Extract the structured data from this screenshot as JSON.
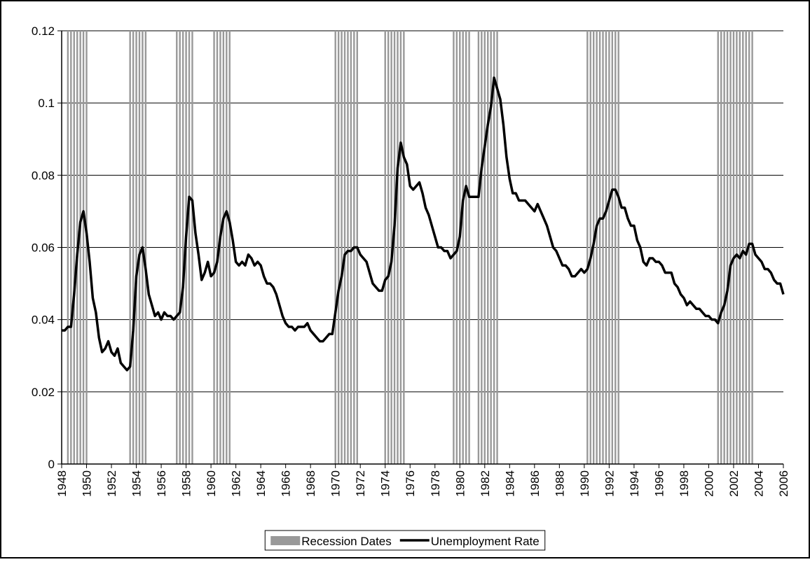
{
  "chart_data": {
    "type": "line",
    "xlim": [
      1948,
      2006
    ],
    "xticks": [
      1948,
      1950,
      1952,
      1954,
      1956,
      1958,
      1960,
      1962,
      1964,
      1966,
      1968,
      1970,
      1972,
      1974,
      1976,
      1978,
      1980,
      1982,
      1984,
      1986,
      1988,
      1990,
      1992,
      1994,
      1996,
      1998,
      2000,
      2002,
      2004,
      2006
    ],
    "ylim": [
      0,
      0.12
    ],
    "yticks": [
      0,
      0.02,
      0.04,
      0.06,
      0.08,
      0.1,
      0.12
    ],
    "grid": true,
    "legend": "bottom",
    "series": [
      {
        "name": "Recession Dates",
        "type": "bar",
        "color": "#999999",
        "x": [
          1948.5,
          1948.75,
          1949,
          1949.25,
          1949.5,
          1949.75,
          1950,
          1953.5,
          1953.75,
          1954,
          1954.25,
          1954.5,
          1954.75,
          1957.25,
          1957.5,
          1957.75,
          1958,
          1958.25,
          1958.5,
          1960.25,
          1960.5,
          1960.75,
          1961,
          1961.25,
          1961.5,
          1970,
          1970.25,
          1970.5,
          1970.75,
          1971,
          1971.25,
          1971.5,
          1971.75,
          1974,
          1974.25,
          1974.5,
          1974.75,
          1975,
          1975.25,
          1975.5,
          1979.5,
          1979.75,
          1980,
          1980.25,
          1980.5,
          1980.75,
          1981.5,
          1981.75,
          1982,
          1982.25,
          1982.5,
          1982.75,
          1983,
          1990.25,
          1990.5,
          1990.75,
          1991,
          1991.25,
          1991.5,
          1991.75,
          1992,
          1992.25,
          1992.5,
          1992.75,
          2000.75,
          2001,
          2001.25,
          2001.5,
          2001.75,
          2002,
          2002.25,
          2002.5,
          2002.75,
          2003,
          2003.25,
          2003.5
        ],
        "values": [
          0.12,
          0.12,
          0.12,
          0.12,
          0.12,
          0.12,
          0.12,
          0.12,
          0.12,
          0.12,
          0.12,
          0.12,
          0.12,
          0.12,
          0.12,
          0.12,
          0.12,
          0.12,
          0.12,
          0.12,
          0.12,
          0.12,
          0.12,
          0.12,
          0.12,
          0.12,
          0.12,
          0.12,
          0.12,
          0.12,
          0.12,
          0.12,
          0.12,
          0.12,
          0.12,
          0.12,
          0.12,
          0.12,
          0.12,
          0.12,
          0.12,
          0.12,
          0.12,
          0.12,
          0.12,
          0.12,
          0.12,
          0.12,
          0.12,
          0.12,
          0.12,
          0.12,
          0.12,
          0.12,
          0.12,
          0.12,
          0.12,
          0.12,
          0.12,
          0.12,
          0.12,
          0.12,
          0.12,
          0.12,
          0.12,
          0.12,
          0.12,
          0.12,
          0.12,
          0.12,
          0.12,
          0.12,
          0.12,
          0.12,
          0.12,
          0.12
        ]
      },
      {
        "name": "Unemployment Rate",
        "color": "#000000",
        "x": [
          1948,
          1948.25,
          1948.5,
          1948.75,
          1949,
          1949.25,
          1949.5,
          1949.75,
          1950,
          1950.25,
          1950.5,
          1950.75,
          1951,
          1951.25,
          1951.5,
          1951.75,
          1952,
          1952.25,
          1952.5,
          1952.75,
          1953,
          1953.25,
          1953.5,
          1953.75,
          1954,
          1954.25,
          1954.5,
          1954.75,
          1955,
          1955.25,
          1955.5,
          1955.75,
          1956,
          1956.25,
          1956.5,
          1956.75,
          1957,
          1957.25,
          1957.5,
          1957.75,
          1958,
          1958.25,
          1958.5,
          1958.75,
          1959,
          1959.25,
          1959.5,
          1959.75,
          1960,
          1960.25,
          1960.5,
          1960.75,
          1961,
          1961.25,
          1961.5,
          1961.75,
          1962,
          1962.25,
          1962.5,
          1962.75,
          1963,
          1963.25,
          1963.5,
          1963.75,
          1964,
          1964.25,
          1964.5,
          1964.75,
          1965,
          1965.25,
          1965.5,
          1965.75,
          1966,
          1966.25,
          1966.5,
          1966.75,
          1967,
          1967.25,
          1967.5,
          1967.75,
          1968,
          1968.25,
          1968.5,
          1968.75,
          1969,
          1969.25,
          1969.5,
          1969.75,
          1970,
          1970.25,
          1970.5,
          1970.75,
          1971,
          1971.25,
          1971.5,
          1971.75,
          1972,
          1972.25,
          1972.5,
          1972.75,
          1973,
          1973.25,
          1973.5,
          1973.75,
          1974,
          1974.25,
          1974.5,
          1974.75,
          1975,
          1975.25,
          1975.5,
          1975.75,
          1976,
          1976.25,
          1976.5,
          1976.75,
          1977,
          1977.25,
          1977.5,
          1977.75,
          1978,
          1978.25,
          1978.5,
          1978.75,
          1979,
          1979.25,
          1979.5,
          1979.75,
          1980,
          1980.25,
          1980.5,
          1980.75,
          1981,
          1981.25,
          1981.5,
          1981.75,
          1982,
          1982.25,
          1982.5,
          1982.75,
          1983,
          1983.25,
          1983.5,
          1983.75,
          1984,
          1984.25,
          1984.5,
          1984.75,
          1985,
          1985.25,
          1985.5,
          1985.75,
          1986,
          1986.25,
          1986.5,
          1986.75,
          1987,
          1987.25,
          1987.5,
          1987.75,
          1988,
          1988.25,
          1988.5,
          1988.75,
          1989,
          1989.25,
          1989.5,
          1989.75,
          1990,
          1990.25,
          1990.5,
          1990.75,
          1991,
          1991.25,
          1991.5,
          1991.75,
          1992,
          1992.25,
          1992.5,
          1992.75,
          1993,
          1993.25,
          1993.5,
          1993.75,
          1994,
          1994.25,
          1994.5,
          1994.75,
          1995,
          1995.25,
          1995.5,
          1995.75,
          1996,
          1996.25,
          1996.5,
          1996.75,
          1997,
          1997.25,
          1997.5,
          1997.75,
          1998,
          1998.25,
          1998.5,
          1998.75,
          1999,
          1999.25,
          1999.5,
          1999.75,
          2000,
          2000.25,
          2000.5,
          2000.75,
          2001,
          2001.25,
          2001.5,
          2001.75,
          2002,
          2002.25,
          2002.5,
          2002.75,
          2003,
          2003.25,
          2003.5,
          2003.75,
          2004,
          2004.25,
          2004.5,
          2004.75,
          2005,
          2005.25,
          2005.5,
          2005.75,
          2006
        ],
        "values": [
          0.037,
          0.037,
          0.038,
          0.038,
          0.047,
          0.058,
          0.067,
          0.07,
          0.064,
          0.056,
          0.046,
          0.042,
          0.035,
          0.031,
          0.032,
          0.034,
          0.031,
          0.03,
          0.032,
          0.028,
          0.027,
          0.026,
          0.027,
          0.037,
          0.052,
          0.058,
          0.06,
          0.054,
          0.047,
          0.044,
          0.041,
          0.042,
          0.04,
          0.042,
          0.041,
          0.041,
          0.04,
          0.041,
          0.042,
          0.049,
          0.063,
          0.074,
          0.073,
          0.064,
          0.058,
          0.051,
          0.053,
          0.056,
          0.052,
          0.053,
          0.056,
          0.063,
          0.068,
          0.07,
          0.067,
          0.062,
          0.056,
          0.055,
          0.056,
          0.055,
          0.058,
          0.057,
          0.055,
          0.056,
          0.055,
          0.052,
          0.05,
          0.05,
          0.049,
          0.047,
          0.044,
          0.041,
          0.039,
          0.038,
          0.038,
          0.037,
          0.038,
          0.038,
          0.038,
          0.039,
          0.037,
          0.036,
          0.035,
          0.034,
          0.034,
          0.035,
          0.036,
          0.036,
          0.042,
          0.048,
          0.052,
          0.058,
          0.059,
          0.059,
          0.06,
          0.06,
          0.058,
          0.057,
          0.056,
          0.053,
          0.05,
          0.049,
          0.048,
          0.048,
          0.051,
          0.052,
          0.056,
          0.066,
          0.082,
          0.089,
          0.085,
          0.083,
          0.077,
          0.076,
          0.077,
          0.078,
          0.075,
          0.071,
          0.069,
          0.066,
          0.063,
          0.06,
          0.06,
          0.059,
          0.059,
          0.057,
          0.058,
          0.059,
          0.063,
          0.073,
          0.077,
          0.074,
          0.074,
          0.074,
          0.074,
          0.082,
          0.088,
          0.094,
          0.099,
          0.107,
          0.104,
          0.101,
          0.094,
          0.085,
          0.079,
          0.075,
          0.075,
          0.073,
          0.073,
          0.073,
          0.072,
          0.071,
          0.07,
          0.072,
          0.07,
          0.068,
          0.066,
          0.063,
          0.06,
          0.059,
          0.057,
          0.055,
          0.055,
          0.054,
          0.052,
          0.052,
          0.053,
          0.054,
          0.053,
          0.054,
          0.057,
          0.061,
          0.066,
          0.068,
          0.068,
          0.07,
          0.073,
          0.076,
          0.076,
          0.074,
          0.071,
          0.071,
          0.068,
          0.066,
          0.066,
          0.062,
          0.06,
          0.056,
          0.055,
          0.057,
          0.057,
          0.056,
          0.056,
          0.055,
          0.053,
          0.053,
          0.053,
          0.05,
          0.049,
          0.047,
          0.046,
          0.044,
          0.045,
          0.044,
          0.043,
          0.043,
          0.042,
          0.041,
          0.041,
          0.04,
          0.04,
          0.039,
          0.042,
          0.044,
          0.048,
          0.055,
          0.057,
          0.058,
          0.057,
          0.059,
          0.058,
          0.061,
          0.061,
          0.058,
          0.057,
          0.056,
          0.054,
          0.054,
          0.053,
          0.051,
          0.05,
          0.05,
          0.047
        ]
      }
    ]
  }
}
